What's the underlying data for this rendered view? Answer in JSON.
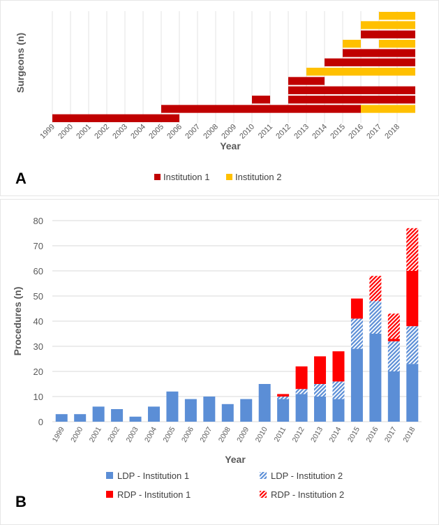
{
  "colors": {
    "inst1_dark": "#C00000",
    "inst2_yellow": "#FFC000",
    "ldp_blue": "#5B8ED6",
    "rdp_red": "#FF0000",
    "grid": "#D9D9D9"
  },
  "chart_data": [
    {
      "type": "gantt",
      "panel_label": "A",
      "ylabel": "Surgeons (n)",
      "xlabel": "Year",
      "tick_labels": [
        "1999",
        "2000",
        "2001",
        "2002",
        "2003",
        "2004",
        "2005",
        "2006",
        "2007",
        "2008",
        "2009",
        "2010",
        "2011",
        "2012",
        "2013",
        "2014",
        "2015",
        "2016",
        "2017",
        "2018"
      ],
      "xlim": [
        1999,
        2019
      ],
      "legend": [
        "Institution 1",
        "Institution 2"
      ],
      "legend_position": "bottom",
      "rows": [
        [
          {
            "start": 1999,
            "end": 2006,
            "inst": 1
          }
        ],
        [
          {
            "start": 2005,
            "end": 2016,
            "inst": 1
          },
          {
            "start": 2016,
            "end": 2019,
            "inst": 2
          }
        ],
        [
          {
            "start": 2010,
            "end": 2011,
            "inst": 1
          },
          {
            "start": 2012,
            "end": 2019,
            "inst": 1
          }
        ],
        [
          {
            "start": 2012,
            "end": 2019,
            "inst": 1
          }
        ],
        [
          {
            "start": 2012,
            "end": 2014,
            "inst": 1
          }
        ],
        [
          {
            "start": 2013,
            "end": 2019,
            "inst": 2
          }
        ],
        [
          {
            "start": 2014,
            "end": 2019,
            "inst": 1
          }
        ],
        [
          {
            "start": 2015,
            "end": 2019,
            "inst": 1
          }
        ],
        [
          {
            "start": 2015,
            "end": 2016,
            "inst": 2
          },
          {
            "start": 2017,
            "end": 2019,
            "inst": 2
          }
        ],
        [
          {
            "start": 2016,
            "end": 2019,
            "inst": 1
          }
        ],
        [
          {
            "start": 2016,
            "end": 2019,
            "inst": 2
          }
        ],
        [
          {
            "start": 2017,
            "end": 2019,
            "inst": 2
          }
        ]
      ]
    },
    {
      "type": "bar",
      "stacked": true,
      "panel_label": "B",
      "ylabel": "Procedures (n)",
      "xlabel": "Year",
      "ylim": [
        0,
        80
      ],
      "yticks": [
        "0",
        "10",
        "20",
        "30",
        "40",
        "50",
        "60",
        "70",
        "80"
      ],
      "grid": true,
      "legend_position": "bottom",
      "categories": [
        "1999",
        "2000",
        "2001",
        "2002",
        "2003",
        "2004",
        "2005",
        "2006",
        "2007",
        "2008",
        "2009",
        "2010",
        "2011",
        "2012",
        "2013",
        "2014",
        "2015",
        "2016",
        "2017",
        "2018"
      ],
      "series": [
        {
          "name": "LDP - Institution 1",
          "values": [
            3,
            3,
            6,
            5,
            2,
            6,
            12,
            9,
            10,
            7,
            9,
            15,
            9,
            11,
            10,
            9,
            29,
            35,
            20,
            23
          ]
        },
        {
          "name": "LDP - Institution 2",
          "values": [
            0,
            0,
            0,
            0,
            0,
            0,
            0,
            0,
            0,
            0,
            0,
            0,
            1,
            2,
            5,
            7,
            12,
            13,
            12,
            15
          ]
        },
        {
          "name": "RDP - Institution 1",
          "values": [
            0,
            0,
            0,
            0,
            0,
            0,
            0,
            0,
            0,
            0,
            0,
            0,
            1,
            9,
            11,
            12,
            8,
            0,
            1,
            22
          ]
        },
        {
          "name": "RDP - Institution 2",
          "values": [
            0,
            0,
            0,
            0,
            0,
            0,
            0,
            0,
            0,
            0,
            0,
            0,
            0,
            0,
            0,
            0,
            0,
            10,
            10,
            17
          ]
        }
      ]
    }
  ]
}
